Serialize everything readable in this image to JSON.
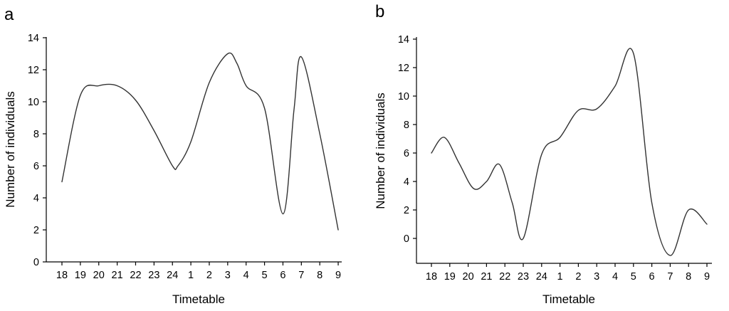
{
  "chart_data": [
    {
      "type": "line",
      "panel_label": "a",
      "xlabel": "Timetable",
      "ylabel": "Number of individuals",
      "categories": [
        "18",
        "19",
        "20",
        "21",
        "22",
        "23",
        "24",
        "1",
        "2",
        "3",
        "4",
        "5",
        "6",
        "7",
        "8",
        "9"
      ],
      "ylim": [
        0,
        14
      ],
      "yticks": [
        0,
        2,
        4,
        6,
        8,
        10,
        12,
        14
      ],
      "grid": false,
      "series": [
        {
          "x": [
            0,
            1,
            2,
            3,
            4,
            5,
            6,
            6.3,
            7,
            8,
            9,
            9.5,
            10,
            11,
            12,
            12.6,
            13,
            14,
            15
          ],
          "values": [
            5,
            10.4,
            11,
            11,
            10.1,
            8.2,
            6,
            6,
            7.5,
            11.2,
            13,
            12.4,
            11,
            9.6,
            3,
            9.5,
            12.8,
            8,
            2
          ]
        }
      ]
    },
    {
      "type": "line",
      "panel_label": "b",
      "xlabel": "Timetable",
      "ylabel": "Number of individuals",
      "categories": [
        "18",
        "19",
        "20",
        "21",
        "22",
        "23",
        "24",
        "1",
        "2",
        "3",
        "4",
        "5",
        "6",
        "7",
        "8",
        "9"
      ],
      "ylim": [
        -1.6,
        14
      ],
      "yticks": [
        0,
        2,
        4,
        6,
        8,
        10,
        12,
        14
      ],
      "grid": false,
      "series": [
        {
          "x": [
            0,
            0.7,
            1.5,
            2.3,
            3,
            3.7,
            4.4,
            5,
            6,
            7,
            8,
            9,
            10,
            11,
            12,
            13,
            14,
            15
          ],
          "values": [
            6,
            7.1,
            5.3,
            3.5,
            4,
            5.2,
            2.5,
            0,
            5.9,
            7.1,
            9,
            9.1,
            10.7,
            13,
            2.5,
            -1.2,
            2,
            1
          ]
        }
      ]
    }
  ]
}
